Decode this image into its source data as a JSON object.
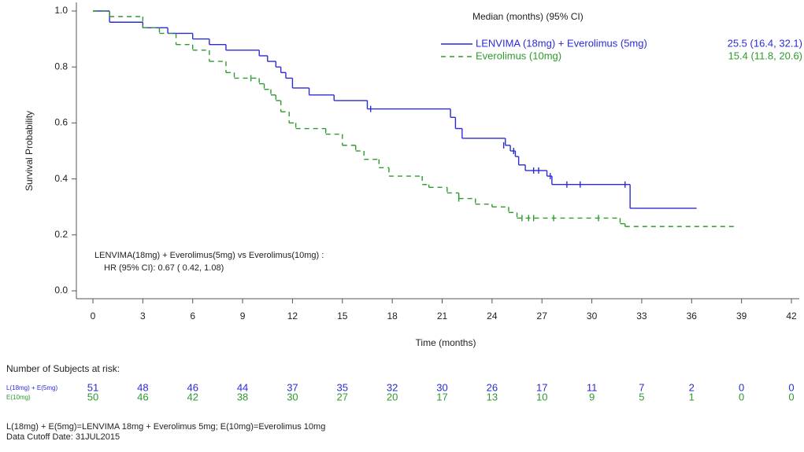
{
  "chart_data": {
    "type": "step",
    "y_label": "Survival Probability",
    "x_label": "Time (months)",
    "xlim": [
      0,
      42
    ],
    "ylim": [
      0,
      1
    ],
    "xticks": [
      0,
      3,
      6,
      9,
      12,
      15,
      18,
      21,
      24,
      27,
      30,
      33,
      36,
      39,
      42
    ],
    "yticks": [
      {
        "value": 0,
        "label": "0.0"
      },
      {
        "value": 0.2,
        "label": "0.2"
      },
      {
        "value": 0.4,
        "label": "0.4"
      },
      {
        "value": 0.6,
        "label": "0.6"
      },
      {
        "value": 0.8,
        "label": "0.8"
      },
      {
        "value": 1,
        "label": "1.0"
      }
    ],
    "legend_title": "Median (months) (95% CI)",
    "series": [
      {
        "name": "LENVIMA (18mg) + Everolimus (5mg)",
        "median_label": "25.5 (16.4, 32.1)",
        "color": "#2b2bd6",
        "dash": false,
        "x": [
          0,
          1,
          3,
          4.5,
          6,
          7,
          8,
          10,
          10.5,
          11,
          11.3,
          11.6,
          12,
          13,
          14.5,
          16.5,
          21.5,
          21.8,
          22.2,
          24.8,
          25.1,
          25.4,
          25.6,
          26,
          27.3,
          27.6,
          32.3,
          36.3
        ],
        "values": [
          1,
          0.96,
          0.94,
          0.92,
          0.9,
          0.88,
          0.86,
          0.84,
          0.82,
          0.8,
          0.78,
          0.76,
          0.725,
          0.7,
          0.68,
          0.65,
          0.62,
          0.58,
          0.545,
          0.52,
          0.5,
          0.48,
          0.45,
          0.43,
          0.41,
          0.38,
          0.295,
          0.295
        ],
        "censor_x": [
          16.7,
          24.7,
          25.3,
          26.5,
          26.8,
          27.5,
          28.5,
          29.3,
          32
        ],
        "censor_y": [
          0.65,
          0.52,
          0.5,
          0.43,
          0.43,
          0.41,
          0.38,
          0.38,
          0.38
        ]
      },
      {
        "name": "Everolimus (10mg)",
        "median_label": "15.4 (11.8, 20.6)",
        "color": "#2e9a2e",
        "dash": true,
        "x": [
          0,
          1,
          3,
          4,
          5,
          6,
          7,
          8,
          8.5,
          10,
          10.3,
          10.7,
          11,
          11.3,
          11.8,
          12.2,
          14,
          15,
          15.8,
          16.3,
          17.2,
          17.8,
          19.8,
          20.2,
          21.3,
          22,
          23,
          24,
          25,
          25.5,
          31.7,
          32,
          38.7
        ],
        "values": [
          1,
          0.98,
          0.94,
          0.92,
          0.88,
          0.86,
          0.82,
          0.78,
          0.76,
          0.74,
          0.72,
          0.7,
          0.68,
          0.64,
          0.6,
          0.58,
          0.56,
          0.52,
          0.5,
          0.47,
          0.44,
          0.41,
          0.38,
          0.37,
          0.35,
          0.33,
          0.31,
          0.3,
          0.28,
          0.26,
          0.24,
          0.23,
          0.23
        ],
        "censor_x": [
          9.5,
          22,
          25.8,
          26.2,
          26.5,
          27.7,
          30.4
        ],
        "censor_y": [
          0.76,
          0.33,
          0.26,
          0.26,
          0.26,
          0.26,
          0.26
        ]
      }
    ],
    "annotation": [
      "LENVIMA(18mg) + Everolimus(5mg) vs Everolimus(10mg) :",
      "HR (95% CI):  0.67  ( 0.42,  1.08)"
    ],
    "risk_table": {
      "title": "Number of Subjects at risk:",
      "times": [
        0,
        3,
        6,
        9,
        12,
        15,
        18,
        21,
        24,
        27,
        30,
        33,
        36,
        39,
        42
      ],
      "rows": [
        {
          "name": "L(18mg) + E(5mg)",
          "color": "#2b2bd6",
          "values": [
            51,
            48,
            46,
            44,
            37,
            35,
            32,
            30,
            26,
            17,
            11,
            7,
            2,
            0,
            0
          ]
        },
        {
          "name": "E(10mg)",
          "color": "#2e9a2e",
          "values": [
            50,
            46,
            42,
            38,
            30,
            27,
            20,
            17,
            13,
            10,
            9,
            5,
            1,
            0,
            0
          ]
        }
      ]
    },
    "footnotes": [
      "L(18mg) + E(5mg)=LENVIMA 18mg + Everolimus 5mg; E(10mg)=Everolimus 10mg",
      "Data Cutoff Date: 31JUL2015"
    ]
  }
}
